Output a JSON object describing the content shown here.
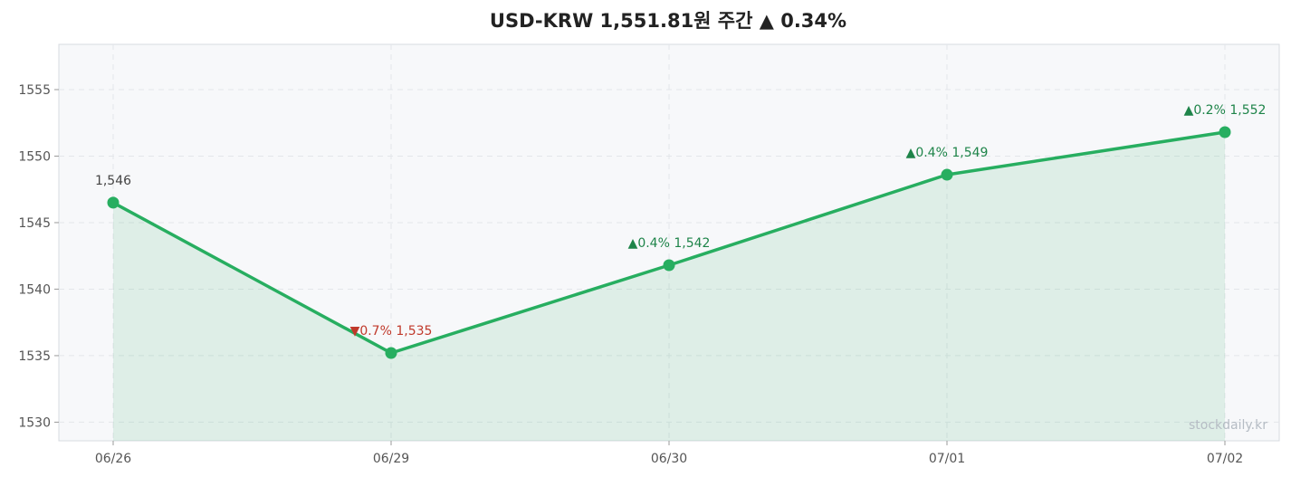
{
  "chart_data": {
    "type": "line",
    "title": "USD-KRW  1,551.81원  주간 ▲ 0.34%",
    "categories": [
      "06/26",
      "06/29",
      "06/30",
      "07/01",
      "07/02"
    ],
    "values": [
      1546.5,
      1535.2,
      1541.8,
      1548.6,
      1551.8
    ],
    "data_labels": [
      "1,546",
      "▼0.7%  1,535",
      "▲0.4%  1,542",
      "▲0.4%  1,549",
      "▲0.2%  1,552"
    ],
    "label_directions": [
      "none",
      "down",
      "up",
      "up",
      "up"
    ],
    "ylim": [
      1528.6,
      1558.4
    ],
    "yticks": [
      1530,
      1535,
      1540,
      1545,
      1550,
      1555
    ],
    "grid": true,
    "legend": "none",
    "watermark": "stockdaily.kr",
    "colors": {
      "line": "#27ae60",
      "fill": "#27ae60",
      "up": "#1e8449",
      "down": "#c0392b",
      "neutral": "#444444",
      "plot_bg": "#f7f8fa",
      "grid": "#e3e6ea",
      "border": "#d7dbe0"
    }
  }
}
